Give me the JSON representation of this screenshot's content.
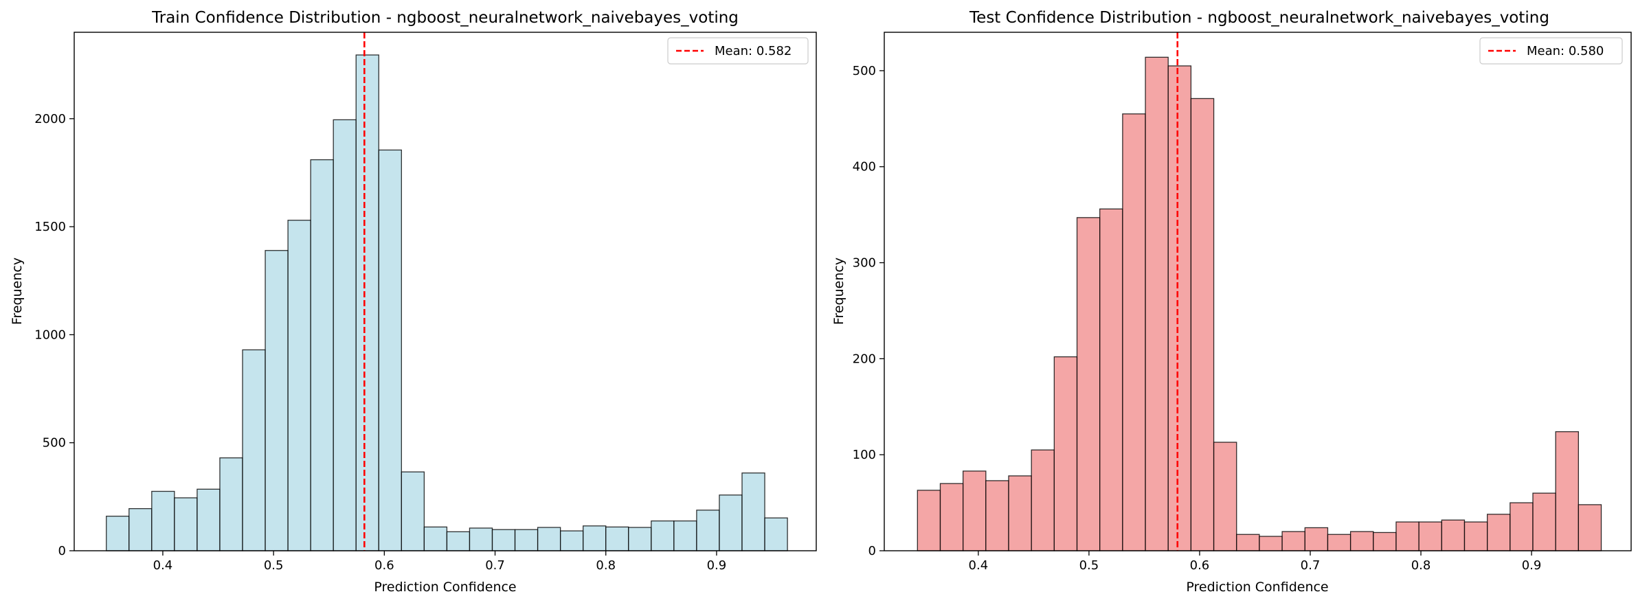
{
  "chart_data": [
    {
      "type": "bar",
      "title": "Train Confidence Distribution - ngboost_neuralnetwork_naivebayes_voting",
      "xlabel": "Prediction Confidence",
      "ylabel": "Frequency",
      "xlim": [
        0.32,
        0.99
      ],
      "ylim": [
        0,
        2400
      ],
      "xticks": [
        0.4,
        0.5,
        0.6,
        0.7,
        0.8,
        0.9
      ],
      "xtick_labels": [
        "0.4",
        "0.5",
        "0.6",
        "0.7",
        "0.8",
        "0.9"
      ],
      "yticks": [
        0,
        500,
        1000,
        1500,
        2000
      ],
      "ytick_labels": [
        "0",
        "500",
        "1000",
        "1500",
        "2000"
      ],
      "bin_start": 0.349,
      "bin_width": 0.0205,
      "values": [
        160,
        195,
        275,
        245,
        285,
        430,
        930,
        1390,
        1530,
        1810,
        1995,
        2295,
        1855,
        365,
        110,
        88,
        105,
        98,
        98,
        108,
        92,
        115,
        110,
        108,
        138,
        138,
        188,
        258,
        360,
        152
      ],
      "bar_color": "#add8e6",
      "mean": 0.582,
      "mean_label": "Mean: 0.582",
      "mean_color": "#ff0000",
      "grid": false,
      "legend_position": "top-right"
    },
    {
      "type": "bar",
      "title": "Test Confidence Distribution - ngboost_neuralnetwork_naivebayes_voting",
      "xlabel": "Prediction Confidence",
      "ylabel": "Frequency",
      "xlim": [
        0.315,
        0.99
      ],
      "ylim": [
        0,
        540
      ],
      "xticks": [
        0.4,
        0.5,
        0.6,
        0.7,
        0.8,
        0.9
      ],
      "xtick_labels": [
        "0.4",
        "0.5",
        "0.6",
        "0.7",
        "0.8",
        "0.9"
      ],
      "yticks": [
        0,
        100,
        200,
        300,
        400,
        500
      ],
      "ytick_labels": [
        "0",
        "100",
        "200",
        "300",
        "400",
        "500"
      ],
      "bin_start": 0.345,
      "bin_width": 0.0206,
      "values": [
        63,
        70,
        83,
        73,
        78,
        105,
        202,
        347,
        356,
        455,
        514,
        505,
        471,
        113,
        17,
        15,
        20,
        24,
        17,
        20,
        19,
        30,
        30,
        32,
        30,
        38,
        50,
        60,
        124,
        48
      ],
      "bar_color": "#f08080",
      "mean": 0.58,
      "mean_label": "Mean: 0.580",
      "mean_color": "#ff0000",
      "grid": false,
      "legend_position": "top-right"
    }
  ]
}
